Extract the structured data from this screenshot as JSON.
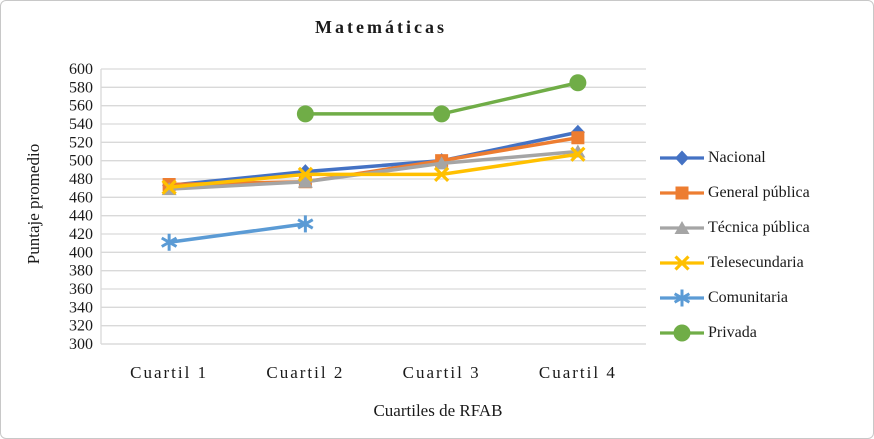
{
  "figure": {
    "border_color": "#c8c8c8",
    "background": "#ffffff"
  },
  "chart_data": {
    "type": "line",
    "title": "Matemáticas",
    "xlabel": "Cuartiles de RFAB",
    "ylabel": "Puntaje promedio",
    "categories": [
      "Cuartil 1",
      "Cuartil 2",
      "Cuartil 3",
      "Cuartil 4"
    ],
    "ylim": [
      300,
      600
    ],
    "ytick_step": 20,
    "grid": true,
    "gridline_color": "#d9d9d9",
    "axis_line_color": "#d9d9d9",
    "text_color": "#1a1a1a",
    "legend_position": "right",
    "series": [
      {
        "name": "Nacional",
        "color": "#4472C4",
        "marker": "diamond",
        "values": [
          473,
          488,
          500,
          531
        ]
      },
      {
        "name": "General pública",
        "color": "#ED7D31",
        "marker": "square",
        "values": [
          474,
          477,
          500,
          525
        ]
      },
      {
        "name": "Técnica pública",
        "color": "#A5A5A5",
        "marker": "triangle",
        "values": [
          469,
          477,
          497,
          510
        ]
      },
      {
        "name": "Telesecundaria",
        "color": "#FFC000",
        "marker": "x",
        "values": [
          471,
          485,
          485,
          507
        ]
      },
      {
        "name": "Comunitaria",
        "color": "#5B9BD5",
        "marker": "asterisk",
        "values": [
          411,
          431,
          null,
          null
        ]
      },
      {
        "name": "Privada",
        "color": "#70AD47",
        "marker": "circle",
        "values": [
          null,
          551,
          551,
          585
        ]
      }
    ]
  }
}
